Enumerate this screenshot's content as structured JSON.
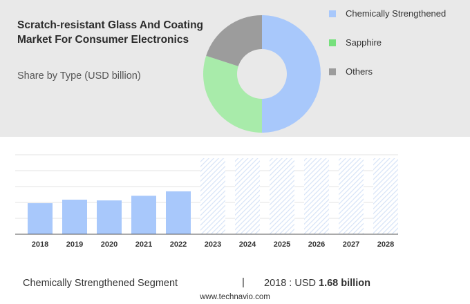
{
  "header": {
    "title": "Scratch-resistant Glass And Coating Market For Consumer Electronics",
    "subtitle": "Share by Type (USD billion)"
  },
  "colors": {
    "chemically_strengthened": "#a8c8fb",
    "sapphire": "#a8ebaa",
    "others": "#9c9c9c",
    "forecast_hatch": "#dfe8f5"
  },
  "legend": {
    "items": [
      {
        "label": "Chemically Strengthened",
        "color": "#a8c8fb"
      },
      {
        "label": "Sapphire",
        "color": "#76e07c"
      },
      {
        "label": "Others",
        "color": "#9c9c9c"
      }
    ]
  },
  "footer": {
    "segment": "Chemically Strengthened Segment",
    "separator": "|",
    "year_value": "2018 : USD ",
    "value_bold": "1.68 billion"
  },
  "source": "www.technavio.com",
  "chart_data": [
    {
      "type": "pie",
      "categories": [
        "Chemically Strengthened",
        "Sapphire",
        "Others"
      ],
      "values": [
        50,
        30,
        20
      ],
      "colors": [
        "#a8c8fb",
        "#a8ebaa",
        "#9c9c9c"
      ]
    },
    {
      "type": "bar",
      "categories": [
        "2018",
        "2019",
        "2020",
        "2021",
        "2022",
        "2023",
        "2024",
        "2025",
        "2026",
        "2027",
        "2028"
      ],
      "values": [
        1.68,
        1.87,
        1.83,
        2.08,
        2.32,
        null,
        null,
        null,
        null,
        null,
        null
      ],
      "forecast_from": "2023",
      "ylim": [
        0,
        4.3
      ],
      "grid": true
    }
  ]
}
